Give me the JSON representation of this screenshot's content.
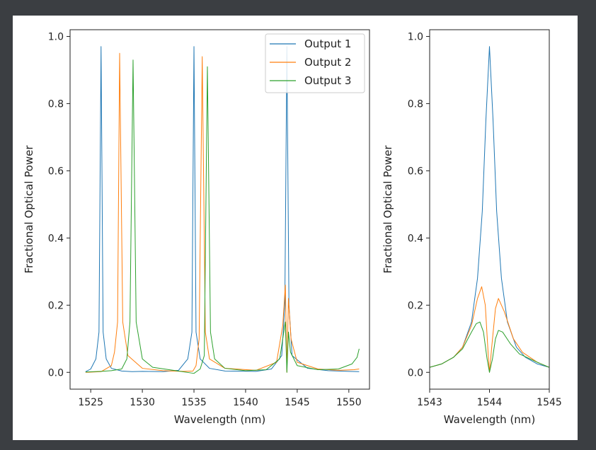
{
  "chart_data": [
    {
      "type": "line",
      "xlabel": "Wavelength (nm)",
      "ylabel": "Fractional Optical Power",
      "xlim": [
        1523,
        1552
      ],
      "ylim": [
        -0.05,
        1.02
      ],
      "xticks": [
        1525,
        1530,
        1535,
        1540,
        1545,
        1550
      ],
      "yticks": [
        0.0,
        0.2,
        0.4,
        0.6,
        0.8,
        1.0
      ],
      "xtick_labels": [
        "1525",
        "1530",
        "1535",
        "1540",
        "1545",
        "1550"
      ],
      "ytick_labels": [
        "0.0",
        "0.2",
        "0.4",
        "0.6",
        "0.8",
        "1.0"
      ],
      "legend_position": "top-right",
      "grid": false,
      "series": [
        {
          "name": "Output 1",
          "color": "#1f77b4",
          "x": [
            1524.5,
            1525.0,
            1525.5,
            1525.8,
            1526.0,
            1526.2,
            1526.5,
            1527.0,
            1528.0,
            1529.0,
            1530.0,
            1532.0,
            1533.5,
            1534.4,
            1534.8,
            1535.0,
            1535.2,
            1535.6,
            1536.5,
            1538.0,
            1541.0,
            1542.5,
            1543.5,
            1543.8,
            1544.0,
            1544.2,
            1544.5,
            1546.0,
            1548.0,
            1550.0,
            1551.0
          ],
          "y": [
            0.002,
            0.01,
            0.04,
            0.12,
            0.97,
            0.12,
            0.04,
            0.012,
            0.004,
            0.002,
            0.003,
            0.002,
            0.006,
            0.04,
            0.12,
            0.97,
            0.12,
            0.04,
            0.012,
            0.004,
            0.003,
            0.01,
            0.05,
            0.2,
            0.97,
            0.2,
            0.05,
            0.012,
            0.005,
            0.003,
            0.002
          ]
        },
        {
          "name": "Output 2",
          "color": "#ff7f0e",
          "x": [
            1524.5,
            1526.0,
            1527.0,
            1527.3,
            1527.6,
            1527.8,
            1528.1,
            1528.6,
            1530.0,
            1532.0,
            1534.0,
            1534.9,
            1535.2,
            1535.5,
            1535.8,
            1536.1,
            1536.5,
            1538.0,
            1541.0,
            1543.0,
            1543.6,
            1543.85,
            1544.0,
            1544.15,
            1544.4,
            1545.0,
            1547.0,
            1549.0,
            1550.5,
            1551.0
          ],
          "y": [
            0.0,
            0.002,
            0.02,
            0.06,
            0.15,
            0.95,
            0.15,
            0.05,
            0.012,
            0.005,
            0.003,
            0.004,
            0.02,
            0.1,
            0.94,
            0.12,
            0.04,
            0.012,
            0.006,
            0.03,
            0.14,
            0.26,
            0.0,
            0.22,
            0.1,
            0.03,
            0.01,
            0.006,
            0.008,
            0.01
          ]
        },
        {
          "name": "Output 3",
          "color": "#2ca02c",
          "x": [
            1524.5,
            1526.0,
            1527.0,
            1528.0,
            1528.5,
            1528.8,
            1529.1,
            1529.4,
            1530.0,
            1531.0,
            1533.0,
            1535.0,
            1535.6,
            1536.0,
            1536.3,
            1536.6,
            1537.0,
            1538.0,
            1540.0,
            1542.0,
            1543.3,
            1543.7,
            1543.85,
            1544.0,
            1544.15,
            1544.35,
            1545.0,
            1547.0,
            1549.0,
            1550.3,
            1550.8,
            1551.0
          ],
          "y": [
            0.001,
            0.003,
            0.005,
            0.01,
            0.04,
            0.15,
            0.93,
            0.15,
            0.04,
            0.015,
            0.006,
            -0.003,
            0.01,
            0.05,
            0.91,
            0.12,
            0.04,
            0.012,
            0.005,
            0.008,
            0.04,
            0.12,
            0.15,
            0.0,
            0.12,
            0.06,
            0.02,
            0.008,
            0.01,
            0.025,
            0.045,
            0.07
          ]
        }
      ]
    },
    {
      "type": "line",
      "xlabel": "Wavelength (nm)",
      "ylabel": "Fractional Optical Power",
      "xlim": [
        1543,
        1545
      ],
      "ylim": [
        -0.05,
        1.02
      ],
      "xticks": [
        1543,
        1544,
        1545
      ],
      "yticks": [
        0.0,
        0.2,
        0.4,
        0.6,
        0.8,
        1.0
      ],
      "xtick_labels": [
        "1543",
        "1544",
        "1545"
      ],
      "ytick_labels": [
        "0.0",
        "0.2",
        "0.4",
        "0.6",
        "0.8",
        "1.0"
      ],
      "grid": false,
      "series": [
        {
          "name": "Output 1",
          "color": "#1f77b4",
          "x": [
            1543.0,
            1543.2,
            1543.4,
            1543.55,
            1543.7,
            1543.8,
            1543.88,
            1543.94,
            1544.0,
            1544.06,
            1544.12,
            1544.2,
            1544.3,
            1544.45,
            1544.6,
            1544.8,
            1545.0
          ],
          "y": [
            0.015,
            0.025,
            0.045,
            0.075,
            0.15,
            0.28,
            0.48,
            0.75,
            0.97,
            0.75,
            0.48,
            0.28,
            0.15,
            0.075,
            0.045,
            0.025,
            0.015
          ]
        },
        {
          "name": "Output 2",
          "color": "#ff7f0e",
          "x": [
            1543.0,
            1543.2,
            1543.4,
            1543.55,
            1543.7,
            1543.8,
            1543.87,
            1543.93,
            1543.98,
            1544.0,
            1544.04,
            1544.1,
            1544.15,
            1544.25,
            1544.4,
            1544.55,
            1544.8,
            1545.0
          ],
          "y": [
            0.015,
            0.025,
            0.045,
            0.075,
            0.14,
            0.22,
            0.255,
            0.2,
            0.05,
            0.0,
            0.08,
            0.19,
            0.22,
            0.18,
            0.1,
            0.06,
            0.03,
            0.015
          ]
        },
        {
          "name": "Output 3",
          "color": "#2ca02c",
          "x": [
            1543.0,
            1543.2,
            1543.4,
            1543.55,
            1543.7,
            1543.78,
            1543.84,
            1543.9,
            1543.96,
            1544.0,
            1544.05,
            1544.1,
            1544.15,
            1544.22,
            1544.35,
            1544.5,
            1544.8,
            1545.0
          ],
          "y": [
            0.015,
            0.025,
            0.045,
            0.07,
            0.12,
            0.145,
            0.15,
            0.12,
            0.04,
            0.0,
            0.04,
            0.1,
            0.125,
            0.12,
            0.085,
            0.055,
            0.03,
            0.015
          ]
        }
      ]
    }
  ]
}
